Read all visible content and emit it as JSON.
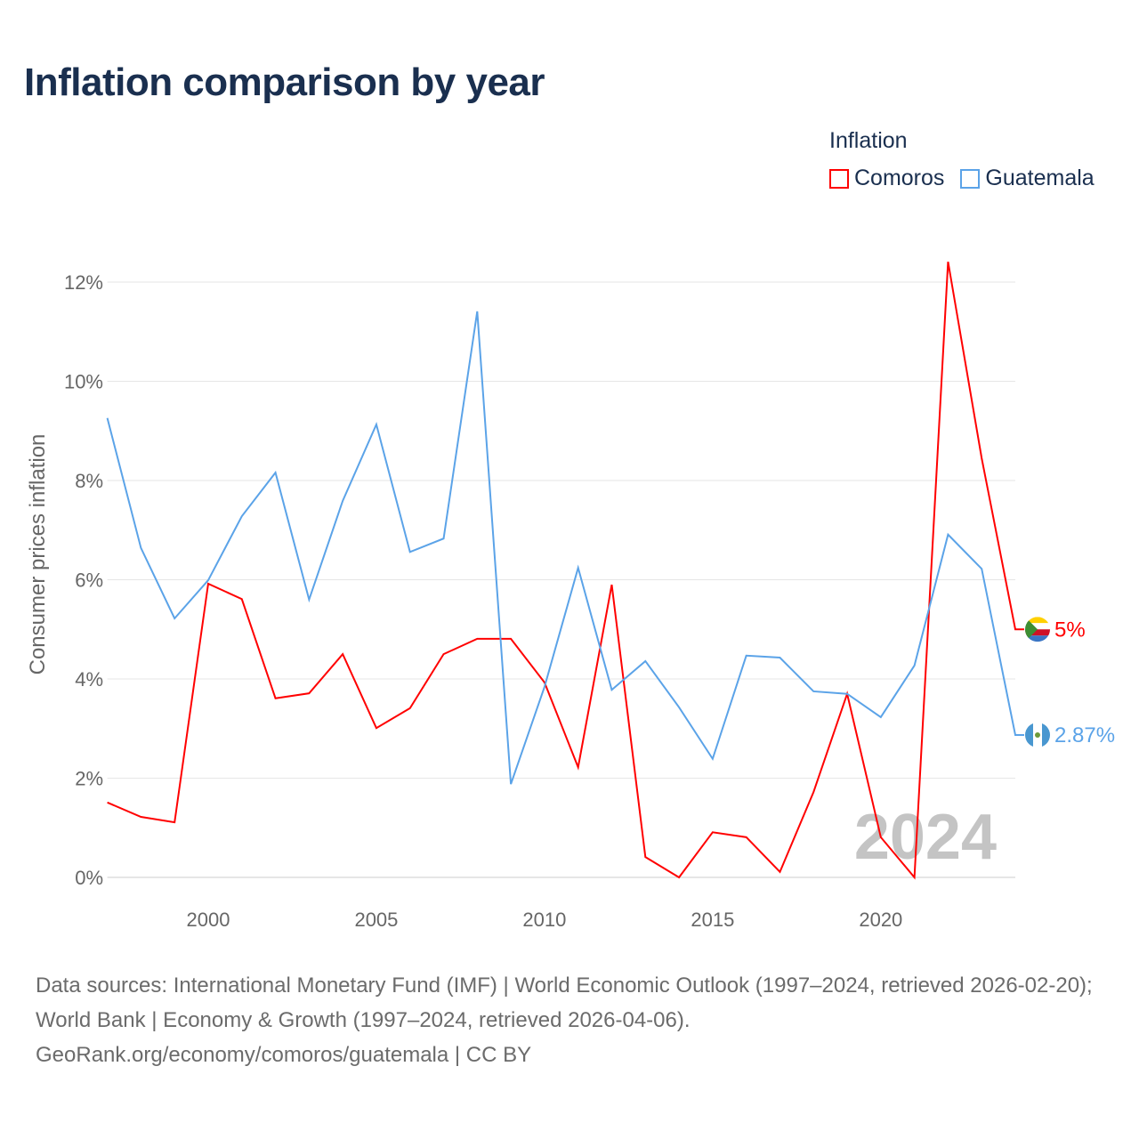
{
  "title": "Inflation comparison by year",
  "legend": {
    "title": "Inflation",
    "items": [
      {
        "name": "Comoros",
        "color": "#ff0000"
      },
      {
        "name": "Guatemala",
        "color": "#5ba3e8"
      }
    ]
  },
  "year_watermark": "2024",
  "footer": {
    "sources": "Data sources: International Monetary Fund (IMF) | World Economic Outlook (1997–2024, retrieved 2026-02-20); World Bank | Economy & Growth (1997–2024, retrieved 2026-04-06).",
    "credit": "GeoRank.org/economy/comoros/guatemala | CC BY"
  },
  "chart_data": {
    "type": "line",
    "title": "Inflation comparison by year",
    "xlabel": "",
    "ylabel": "Consumer prices inflation",
    "xlim": [
      1997,
      2024
    ],
    "ylim": [
      0,
      12.4
    ],
    "x_ticks": [
      2000,
      2005,
      2010,
      2015,
      2020
    ],
    "y_ticks": [
      0,
      2,
      4,
      6,
      8,
      10,
      12
    ],
    "y_tick_labels": [
      "0%",
      "2%",
      "4%",
      "6%",
      "8%",
      "10%",
      "12%"
    ],
    "grid": true,
    "legend_position": "top-right",
    "x": [
      1997,
      1998,
      1999,
      2000,
      2001,
      2002,
      2003,
      2004,
      2005,
      2006,
      2007,
      2008,
      2009,
      2010,
      2011,
      2012,
      2013,
      2014,
      2015,
      2016,
      2017,
      2018,
      2019,
      2020,
      2021,
      2022,
      2023,
      2024
    ],
    "series": [
      {
        "name": "Comoros",
        "color": "#ff0000",
        "end_label": "5%",
        "values": [
          1.51,
          1.22,
          1.11,
          5.92,
          5.61,
          3.61,
          3.71,
          4.5,
          3.01,
          3.41,
          4.5,
          4.81,
          4.81,
          3.93,
          2.22,
          5.9,
          0.41,
          0.0,
          0.91,
          0.81,
          0.11,
          1.72,
          3.7,
          0.81,
          0.0,
          12.41,
          8.45,
          5.0
        ]
      },
      {
        "name": "Guatemala",
        "color": "#5ba3e8",
        "end_label": "2.87%",
        "values": [
          9.26,
          6.64,
          5.22,
          5.99,
          7.28,
          8.16,
          5.6,
          7.59,
          9.13,
          6.56,
          6.83,
          11.41,
          1.88,
          3.84,
          6.24,
          3.78,
          4.36,
          3.43,
          2.39,
          4.47,
          4.43,
          3.75,
          3.7,
          3.23,
          4.27,
          6.91,
          6.22,
          2.87
        ]
      }
    ]
  }
}
